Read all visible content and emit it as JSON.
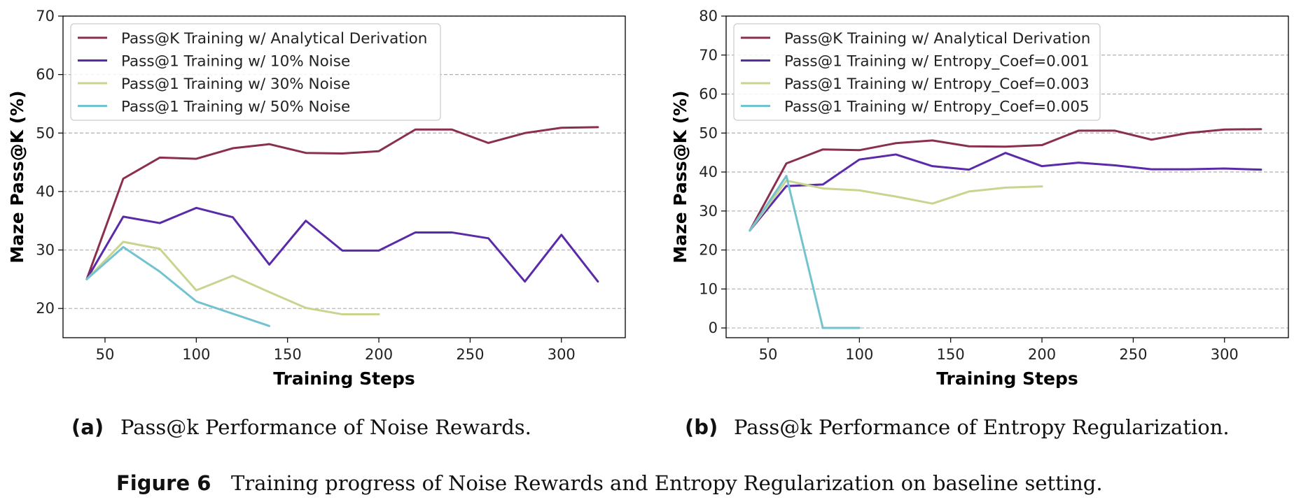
{
  "colors": {
    "analytical": "#8B2F4E",
    "series2": "#5B2AA8",
    "series3": "#C9D48F",
    "series4": "#72C3CF",
    "grid": "#b0b0b0"
  },
  "chart_data": [
    {
      "type": "line",
      "xlabel": "Training Steps",
      "ylabel": "Maze Pass@K (%)",
      "xlim": [
        27,
        335
      ],
      "ylim": [
        15,
        70
      ],
      "xticks": [
        50,
        100,
        150,
        200,
        250,
        300
      ],
      "yticks": [
        20,
        30,
        40,
        50,
        60,
        70
      ],
      "grid": "y-dashed",
      "legend_position": "top-left",
      "series": [
        {
          "name": "Pass@K Training w/ Analytical Derivation",
          "color_key": "analytical",
          "x": [
            40,
            60,
            80,
            100,
            120,
            140,
            160,
            180,
            200,
            220,
            240,
            260,
            280,
            300,
            320
          ],
          "y": [
            25.0,
            42.2,
            45.8,
            45.6,
            47.4,
            48.1,
            46.6,
            46.5,
            46.9,
            50.6,
            50.6,
            48.3,
            50.0,
            50.9,
            51.0
          ]
        },
        {
          "name": "Pass@1 Training w/ 10% Noise",
          "color_key": "series2",
          "x": [
            40,
            60,
            80,
            100,
            120,
            140,
            160,
            180,
            200,
            220,
            240,
            260,
            280,
            300,
            320
          ],
          "y": [
            25.0,
            35.7,
            34.6,
            37.2,
            35.6,
            27.5,
            35.0,
            29.9,
            29.9,
            33.0,
            33.0,
            32.0,
            24.6,
            32.6,
            24.6
          ]
        },
        {
          "name": "Pass@1 Training w/ 30% Noise",
          "color_key": "series3",
          "x": [
            40,
            60,
            80,
            100,
            120,
            140,
            160,
            180,
            200
          ],
          "y": [
            25.0,
            31.4,
            30.2,
            23.1,
            25.6,
            22.8,
            20.1,
            19.0,
            19.0
          ]
        },
        {
          "name": "Pass@1 Training w/ 50% Noise",
          "color_key": "series4",
          "x": [
            40,
            60,
            80,
            100,
            120,
            140
          ],
          "y": [
            25.0,
            30.5,
            26.3,
            21.2,
            19.1,
            17.0
          ]
        }
      ]
    },
    {
      "type": "line",
      "xlabel": "Training Steps",
      "ylabel": "Maze Pass@K (%)",
      "xlim": [
        27,
        335
      ],
      "ylim": [
        -2.5,
        80
      ],
      "xticks": [
        50,
        100,
        150,
        200,
        250,
        300
      ],
      "yticks": [
        0,
        10,
        20,
        30,
        40,
        50,
        60,
        70,
        80
      ],
      "grid": "y-dashed",
      "legend_position": "top-left",
      "series": [
        {
          "name": "Pass@K Training w/ Analytical Derivation",
          "color_key": "analytical",
          "x": [
            40,
            60,
            80,
            100,
            120,
            140,
            160,
            180,
            200,
            220,
            240,
            260,
            280,
            300,
            320
          ],
          "y": [
            25.0,
            42.2,
            45.8,
            45.6,
            47.4,
            48.1,
            46.6,
            46.5,
            46.9,
            50.6,
            50.6,
            48.3,
            50.0,
            50.9,
            51.0
          ]
        },
        {
          "name": "Pass@1 Training w/ Entropy_Coef=0.001",
          "color_key": "series2",
          "x": [
            40,
            60,
            80,
            100,
            120,
            140,
            160,
            180,
            200,
            220,
            240,
            260,
            280,
            300,
            320
          ],
          "y": [
            25.0,
            36.4,
            36.8,
            43.2,
            44.5,
            41.5,
            40.6,
            44.9,
            41.5,
            42.4,
            41.7,
            40.7,
            40.7,
            40.9,
            40.6
          ]
        },
        {
          "name": "Pass@1 Training w/ Entropy_Coef=0.003",
          "color_key": "series3",
          "x": [
            40,
            60,
            80,
            100,
            120,
            140,
            160,
            180,
            200
          ],
          "y": [
            25.0,
            37.8,
            35.8,
            35.3,
            33.7,
            31.9,
            35.0,
            36.0,
            36.3
          ]
        },
        {
          "name": "Pass@1 Training w/ Entropy_Coef=0.005",
          "color_key": "series4",
          "x": [
            40,
            60,
            80,
            100
          ],
          "y": [
            25.0,
            39.0,
            0.0,
            0.0
          ]
        }
      ]
    }
  ],
  "captions": {
    "a_tag": "(a)",
    "a_text": "Pass@k Performance of Noise Rewards.",
    "b_tag": "(b)",
    "b_text": "Pass@k Performance of Entropy Regularization.",
    "figure_tag": "Figure 6",
    "figure_text": "Training progress of Noise Rewards and Entropy Regularization on baseline setting."
  }
}
